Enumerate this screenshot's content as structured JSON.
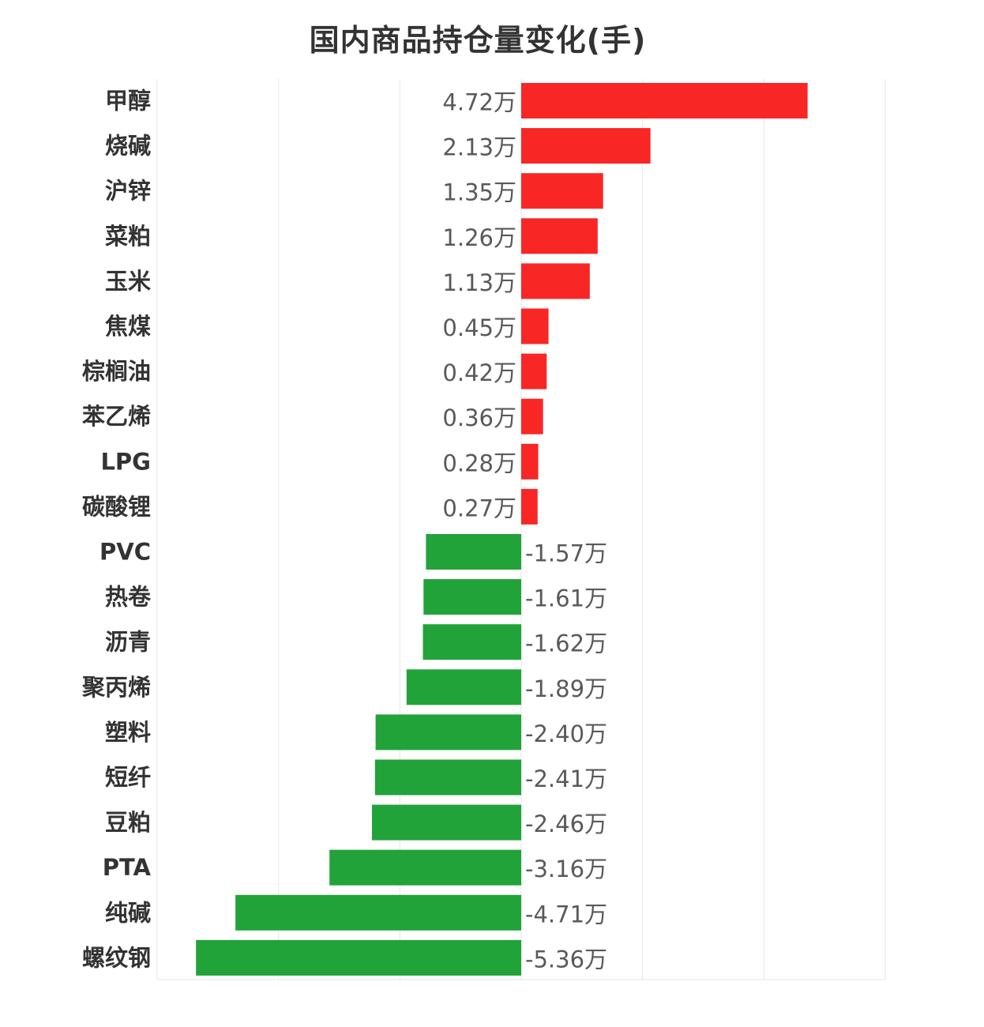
{
  "chart_data": {
    "type": "bar",
    "orientation": "horizontal",
    "title": "国内商品持仓量变化(手)",
    "unit_suffix": "万",
    "categories": [
      "甲醇",
      "烧碱",
      "沪锌",
      "菜粕",
      "玉米",
      "焦煤",
      "棕榈油",
      "苯乙烯",
      "LPG",
      "碳酸锂",
      "PVC",
      "热卷",
      "沥青",
      "聚丙烯",
      "塑料",
      "短纤",
      "豆粕",
      "PTA",
      "纯碱",
      "螺纹钢"
    ],
    "values": [
      4.72,
      2.13,
      1.35,
      1.26,
      1.13,
      0.45,
      0.42,
      0.36,
      0.28,
      0.27,
      -1.57,
      -1.61,
      -1.62,
      -1.89,
      -2.4,
      -2.41,
      -2.46,
      -3.16,
      -4.71,
      -5.36
    ],
    "value_labels": [
      "4.72万",
      "2.13万",
      "1.35万",
      "1.26万",
      "1.13万",
      "0.45万",
      "0.42万",
      "0.36万",
      "0.28万",
      "0.27万",
      "-1.57万",
      "-1.61万",
      "-1.62万",
      "-1.89万",
      "-2.40万",
      "-2.41万",
      "-2.46万",
      "-3.16万",
      "-4.71万",
      "-5.36万"
    ],
    "xlim": [
      -6,
      6
    ],
    "grid": true,
    "colors": {
      "positive": "#f92626",
      "negative": "#21a33a",
      "grid": "#e6e6e6"
    }
  }
}
